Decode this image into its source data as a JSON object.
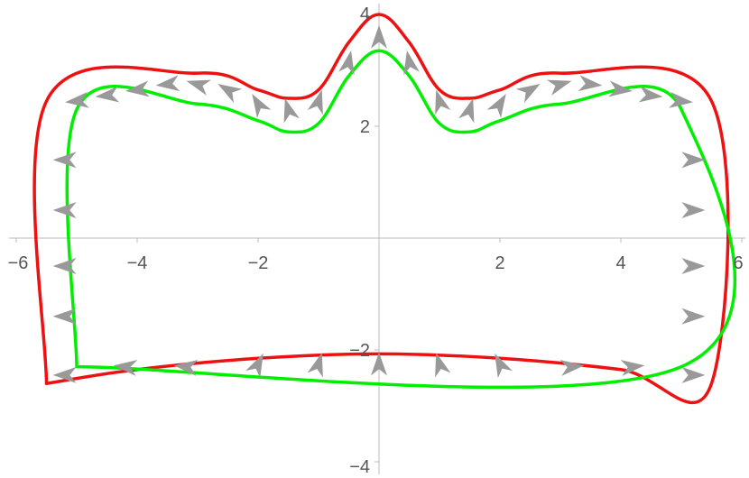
{
  "chart_data": {
    "type": "line",
    "title": "",
    "xlabel": "",
    "ylabel": "",
    "xlim": [
      -6,
      6
    ],
    "ylim": [
      -4,
      4
    ],
    "grid": false,
    "x_ticks": [
      -6,
      -4,
      -2,
      2,
      4,
      6
    ],
    "y_ticks": [
      -4,
      -2,
      2,
      4
    ],
    "x_tick_labels": [
      "−6",
      "−4",
      "−2",
      "2",
      "4",
      "6"
    ],
    "y_tick_labels": [
      "−4",
      "−2",
      "2",
      "4"
    ],
    "colors": {
      "outer_curve": "#ee1111",
      "inner_curve": "#00ee00",
      "arrows": "#999999",
      "axes": "#bbbbbb",
      "tick_text": "#555555"
    },
    "series": [
      {
        "x": [
          -5.5,
          -5.5,
          -3.0,
          -2.0,
          -1.5,
          -1.0,
          -0.5,
          0.0,
          0.5,
          1.0,
          1.5,
          2.0,
          3.0,
          5.5,
          5.5,
          4.0,
          2.0,
          0.0,
          -2.0,
          -4.0,
          -5.5
        ],
        "y": [
          -2.6,
          2.45,
          2.95,
          2.65,
          2.5,
          2.65,
          3.5,
          4.0,
          3.5,
          2.65,
          2.5,
          2.65,
          2.95,
          2.45,
          -2.6,
          -2.35,
          -2.15,
          -2.07,
          -2.15,
          -2.35,
          -2.6
        ]
      },
      {
        "x": [
          -5.0,
          -5.0,
          -3.0,
          -2.0,
          -1.5,
          -1.0,
          -0.5,
          0.0,
          0.5,
          1.0,
          1.5,
          2.0,
          3.0,
          5.0,
          5.0,
          -5.0
        ],
        "y": [
          -2.3,
          2.3,
          2.4,
          2.1,
          1.9,
          2.05,
          2.9,
          3.35,
          2.9,
          2.05,
          1.9,
          2.1,
          2.4,
          2.3,
          -2.3,
          -2.3
        ]
      }
    ],
    "vector_field": {
      "description": "arrows along the boundary between the two curves",
      "arrows": [
        {
          "x": -5.2,
          "y": 1.4,
          "dx": -1,
          "dy": 0
        },
        {
          "x": -5.2,
          "y": 0.5,
          "dx": -1,
          "dy": 0
        },
        {
          "x": -5.2,
          "y": -0.5,
          "dx": -1,
          "dy": 0
        },
        {
          "x": -5.2,
          "y": -1.4,
          "dx": -1,
          "dy": 0
        },
        {
          "x": -5.2,
          "y": -2.45,
          "dx": -1,
          "dy": 0
        },
        {
          "x": 5.2,
          "y": 1.4,
          "dx": 1,
          "dy": 0
        },
        {
          "x": 5.2,
          "y": 0.5,
          "dx": 1,
          "dy": 0
        },
        {
          "x": 5.2,
          "y": -0.5,
          "dx": 1,
          "dy": 0
        },
        {
          "x": 5.2,
          "y": -1.4,
          "dx": 1,
          "dy": 0
        },
        {
          "x": 5.2,
          "y": -2.45,
          "dx": 1,
          "dy": 0
        },
        {
          "x": -4.2,
          "y": -2.3,
          "dx": -1,
          "dy": 0.1
        },
        {
          "x": -3.2,
          "y": -2.3,
          "dx": -1,
          "dy": 0.1
        },
        {
          "x": -2.0,
          "y": -2.25,
          "dx": 0.5,
          "dy": 1
        },
        {
          "x": -1.0,
          "y": -2.25,
          "dx": 0.3,
          "dy": 1
        },
        {
          "x": 0.0,
          "y": -2.25,
          "dx": 0,
          "dy": 1
        },
        {
          "x": 1.0,
          "y": -2.25,
          "dx": -0.3,
          "dy": 1
        },
        {
          "x": 2.0,
          "y": -2.25,
          "dx": -0.5,
          "dy": 1
        },
        {
          "x": 3.2,
          "y": -2.3,
          "dx": 1,
          "dy": 0.1
        },
        {
          "x": 4.2,
          "y": -2.3,
          "dx": 1,
          "dy": 0.1
        },
        {
          "x": -5.0,
          "y": 2.45,
          "dx": -1,
          "dy": -0.1
        },
        {
          "x": -4.5,
          "y": 2.55,
          "dx": -1,
          "dy": -0.1
        },
        {
          "x": -4.0,
          "y": 2.65,
          "dx": -1,
          "dy": -0.1
        },
        {
          "x": -3.5,
          "y": 2.75,
          "dx": -1,
          "dy": -0.1
        },
        {
          "x": -3.0,
          "y": 2.75,
          "dx": -1,
          "dy": 0.3
        },
        {
          "x": -2.5,
          "y": 2.65,
          "dx": -1,
          "dy": 0.6
        },
        {
          "x": -2.0,
          "y": 2.4,
          "dx": -0.6,
          "dy": 1
        },
        {
          "x": -1.5,
          "y": 2.3,
          "dx": -0.3,
          "dy": 1
        },
        {
          "x": -1.0,
          "y": 2.45,
          "dx": 0.3,
          "dy": 1
        },
        {
          "x": -0.5,
          "y": 3.15,
          "dx": 0.2,
          "dy": 1
        },
        {
          "x": 0.0,
          "y": 3.6,
          "dx": 0,
          "dy": 1
        },
        {
          "x": 0.5,
          "y": 3.15,
          "dx": -0.2,
          "dy": 1
        },
        {
          "x": 1.0,
          "y": 2.45,
          "dx": -0.3,
          "dy": 1
        },
        {
          "x": 1.5,
          "y": 2.3,
          "dx": 0.3,
          "dy": 1
        },
        {
          "x": 2.0,
          "y": 2.4,
          "dx": 0.6,
          "dy": 1
        },
        {
          "x": 2.5,
          "y": 2.65,
          "dx": 1,
          "dy": 0.6
        },
        {
          "x": 3.0,
          "y": 2.75,
          "dx": 1,
          "dy": 0.3
        },
        {
          "x": 3.5,
          "y": 2.75,
          "dx": 1,
          "dy": -0.1
        },
        {
          "x": 4.0,
          "y": 2.65,
          "dx": 1,
          "dy": -0.1
        },
        {
          "x": 4.5,
          "y": 2.55,
          "dx": 1,
          "dy": -0.1
        },
        {
          "x": 5.0,
          "y": 2.45,
          "dx": 1,
          "dy": -0.1
        }
      ]
    }
  }
}
